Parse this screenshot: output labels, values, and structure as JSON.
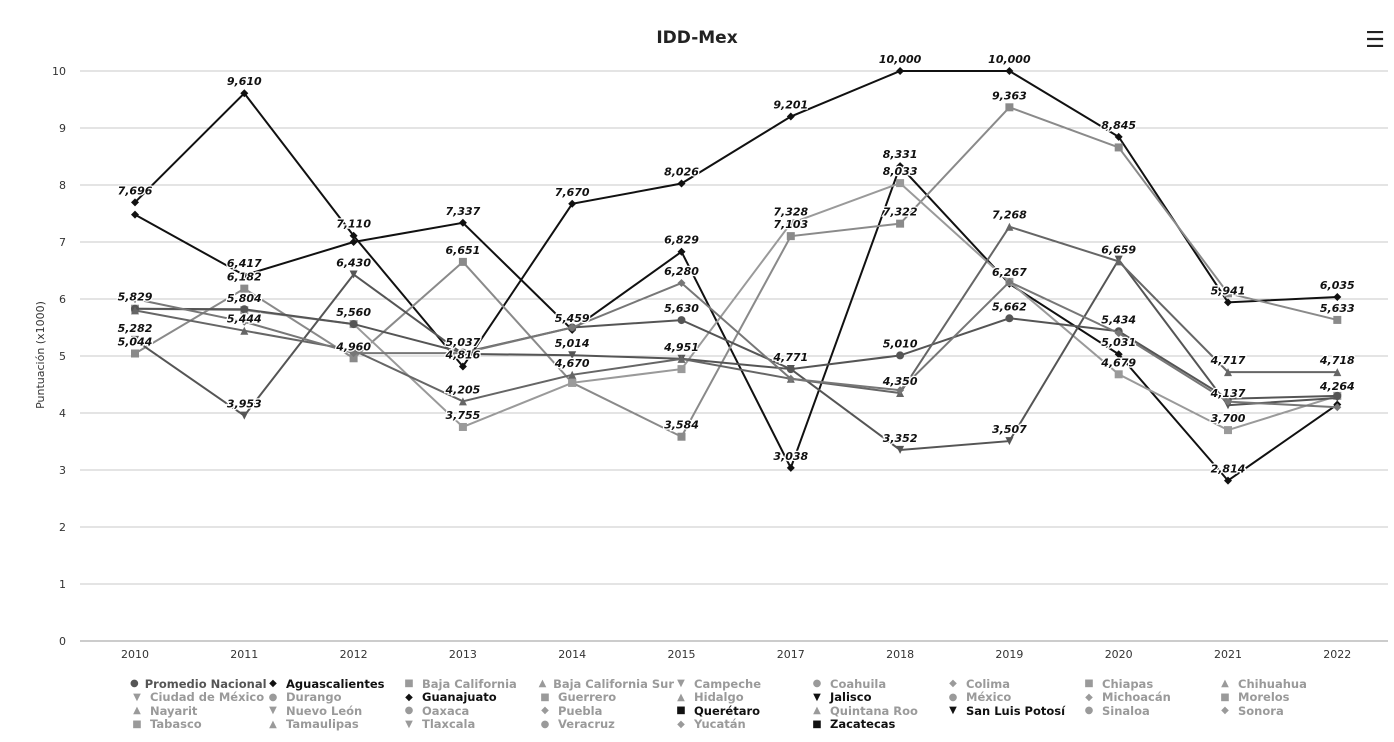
{
  "title": "IDD-Mex",
  "menu_icon": "hamburger-menu-icon",
  "chart_data": {
    "type": "line",
    "title": "IDD-Mex",
    "xlabel": "",
    "ylabel": "Puntuación (x1000)",
    "ylim": [
      0,
      10
    ],
    "yticks": [
      "0",
      "1",
      "2",
      "3",
      "4",
      "5",
      "6",
      "7",
      "8",
      "9",
      "10"
    ],
    "categories": [
      "2010",
      "2011",
      "2012",
      "2013",
      "2014",
      "2015",
      "2017",
      "2018",
      "2019",
      "2020",
      "2021",
      "2022"
    ],
    "grid": true,
    "legend_position": "bottom",
    "series": [
      {
        "name": "Guanajuato",
        "color": "#111111",
        "marker": "diamond",
        "values": [
          7.696,
          9.61,
          7.11,
          4.816,
          7.67,
          8.026,
          9.201,
          10.0,
          10.0,
          8.845,
          5.941,
          6.035
        ],
        "labels": [
          "7,696",
          "9,610",
          "7,110",
          "4,816",
          "7,670",
          "8,026",
          "9,201",
          "10,000",
          "10,000",
          "8,845",
          "5,941",
          "6,035"
        ]
      },
      {
        "name": "Aguascalientes",
        "color": "#111111",
        "marker": "diamond",
        "values": [
          7.48,
          6.417,
          7.0,
          7.337,
          5.459,
          6.829,
          3.038,
          8.331,
          6.267,
          5.031,
          2.814,
          4.15
        ],
        "labels": [
          "",
          "6,417",
          "",
          "7,337",
          "5,459",
          "6,829",
          "3,038",
          "8,331",
          "6,267",
          "5,031",
          "2,814",
          ""
        ]
      },
      {
        "name": "Querétaro",
        "color": "#8a8a8a",
        "marker": "square",
        "values": [
          5.044,
          6.182,
          4.96,
          6.651,
          4.53,
          3.584,
          7.103,
          7.322,
          9.363,
          8.659,
          6.1,
          5.633
        ],
        "labels": [
          "5,044",
          "6,182",
          "4,960",
          "6,651",
          "",
          "3,584",
          "7,103",
          "7,322",
          "9,363",
          "",
          "",
          "5,633"
        ]
      },
      {
        "name": "Zacatecas",
        "color": "#9a9a9a",
        "marker": "square",
        "values": [
          5.83,
          5.804,
          5.56,
          3.755,
          4.53,
          4.77,
          7.328,
          8.033,
          6.3,
          4.679,
          3.7,
          4.3
        ],
        "labels": [
          "",
          "5,804",
          "",
          "3,755",
          "",
          "",
          "7,328",
          "8,033",
          "",
          "4,679",
          "3,700",
          ""
        ]
      },
      {
        "name": "San Luis Potosí",
        "color": "#555555",
        "marker": "triangle-down",
        "values": [
          5.282,
          3.953,
          6.43,
          5.037,
          5.014,
          4.951,
          4.771,
          3.352,
          3.507,
          6.69,
          4.137,
          4.264
        ],
        "labels": [
          "5,282",
          "3,953",
          "6,430",
          "5,037",
          "5,014",
          "4,951",
          "4,771",
          "3,352",
          "3,507",
          "",
          "4,137",
          "4,264"
        ]
      },
      {
        "name": "Promedio Nacional",
        "color": "#555555",
        "marker": "circle",
        "values": [
          5.829,
          5.82,
          5.56,
          5.06,
          5.5,
          5.63,
          4.77,
          5.01,
          5.662,
          5.434,
          4.25,
          4.3
        ],
        "labels": [
          "5,829",
          "",
          "5,560",
          "",
          "",
          "5,630",
          "",
          "5,010",
          "5,662",
          "5,434",
          "",
          ""
        ]
      },
      {
        "name": "Nuevo León",
        "color": "#666666",
        "marker": "triangle-up",
        "values": [
          5.8,
          5.444,
          5.1,
          4.205,
          4.67,
          4.95,
          4.6,
          4.35,
          7.268,
          6.659,
          4.717,
          4.718
        ],
        "labels": [
          "",
          "5,444",
          "",
          "4,205",
          "4,670",
          "",
          "",
          "4,350",
          "7,268",
          "6,659",
          "4,717",
          "4,718"
        ]
      },
      {
        "name": "Colima",
        "color": "#777777",
        "marker": "diamond",
        "values": [
          6.0,
          5.6,
          5.05,
          5.05,
          5.5,
          6.28,
          4.6,
          4.4,
          6.3,
          5.4,
          4.2,
          4.1
        ],
        "labels": [
          "",
          "",
          "",
          "",
          "",
          "6,280",
          "",
          "",
          "",
          "",
          "",
          ""
        ]
      }
    ]
  },
  "legend": {
    "rows": [
      [
        {
          "label": "Promedio Nacional",
          "marker": "●",
          "color": "#555555"
        },
        {
          "label": "Aguascalientes",
          "marker": "◆",
          "color": "#111111"
        },
        {
          "label": "Baja California",
          "marker": "■",
          "color": "#9a9a9a"
        },
        {
          "label": "Baja California Sur",
          "marker": "▲",
          "color": "#9a9a9a"
        },
        {
          "label": "Campeche",
          "marker": "▼",
          "color": "#9a9a9a"
        },
        {
          "label": "Coahuila",
          "marker": "●",
          "color": "#9a9a9a"
        },
        {
          "label": "Colima",
          "marker": "◆",
          "color": "#9a9a9a"
        },
        {
          "label": "Chiapas",
          "marker": "■",
          "color": "#9a9a9a"
        },
        {
          "label": "Chihuahua",
          "marker": "▲",
          "color": "#9a9a9a"
        }
      ],
      [
        {
          "label": "Ciudad de México",
          "marker": "▼",
          "color": "#9a9a9a"
        },
        {
          "label": "Durango",
          "marker": "●",
          "color": "#9a9a9a"
        },
        {
          "label": "Guanajuato",
          "marker": "◆",
          "color": "#111111"
        },
        {
          "label": "Guerrero",
          "marker": "■",
          "color": "#9a9a9a"
        },
        {
          "label": "Hidalgo",
          "marker": "▲",
          "color": "#9a9a9a"
        },
        {
          "label": "Jalisco",
          "marker": "▼",
          "color": "#111111"
        },
        {
          "label": "México",
          "marker": "●",
          "color": "#9a9a9a"
        },
        {
          "label": "Michoacán",
          "marker": "◆",
          "color": "#9a9a9a"
        },
        {
          "label": "Morelos",
          "marker": "■",
          "color": "#9a9a9a"
        }
      ],
      [
        {
          "label": "Nayarit",
          "marker": "▲",
          "color": "#9a9a9a"
        },
        {
          "label": "Nuevo León",
          "marker": "▼",
          "color": "#9a9a9a"
        },
        {
          "label": "Oaxaca",
          "marker": "●",
          "color": "#9a9a9a"
        },
        {
          "label": "Puebla",
          "marker": "◆",
          "color": "#9a9a9a"
        },
        {
          "label": "Querétaro",
          "marker": "■",
          "color": "#111111"
        },
        {
          "label": "Quintana Roo",
          "marker": "▲",
          "color": "#9a9a9a"
        },
        {
          "label": "San Luis Potosí",
          "marker": "▼",
          "color": "#111111"
        },
        {
          "label": "Sinaloa",
          "marker": "●",
          "color": "#9a9a9a"
        },
        {
          "label": "Sonora",
          "marker": "◆",
          "color": "#9a9a9a"
        }
      ],
      [
        {
          "label": "Tabasco",
          "marker": "■",
          "color": "#9a9a9a"
        },
        {
          "label": "Tamaulipas",
          "marker": "▲",
          "color": "#9a9a9a"
        },
        {
          "label": "Tlaxcala",
          "marker": "▼",
          "color": "#9a9a9a"
        },
        {
          "label": "Veracruz",
          "marker": "●",
          "color": "#9a9a9a"
        },
        {
          "label": "Yucatán",
          "marker": "◆",
          "color": "#9a9a9a"
        },
        {
          "label": "Zacatecas",
          "marker": "■",
          "color": "#111111"
        }
      ]
    ]
  }
}
